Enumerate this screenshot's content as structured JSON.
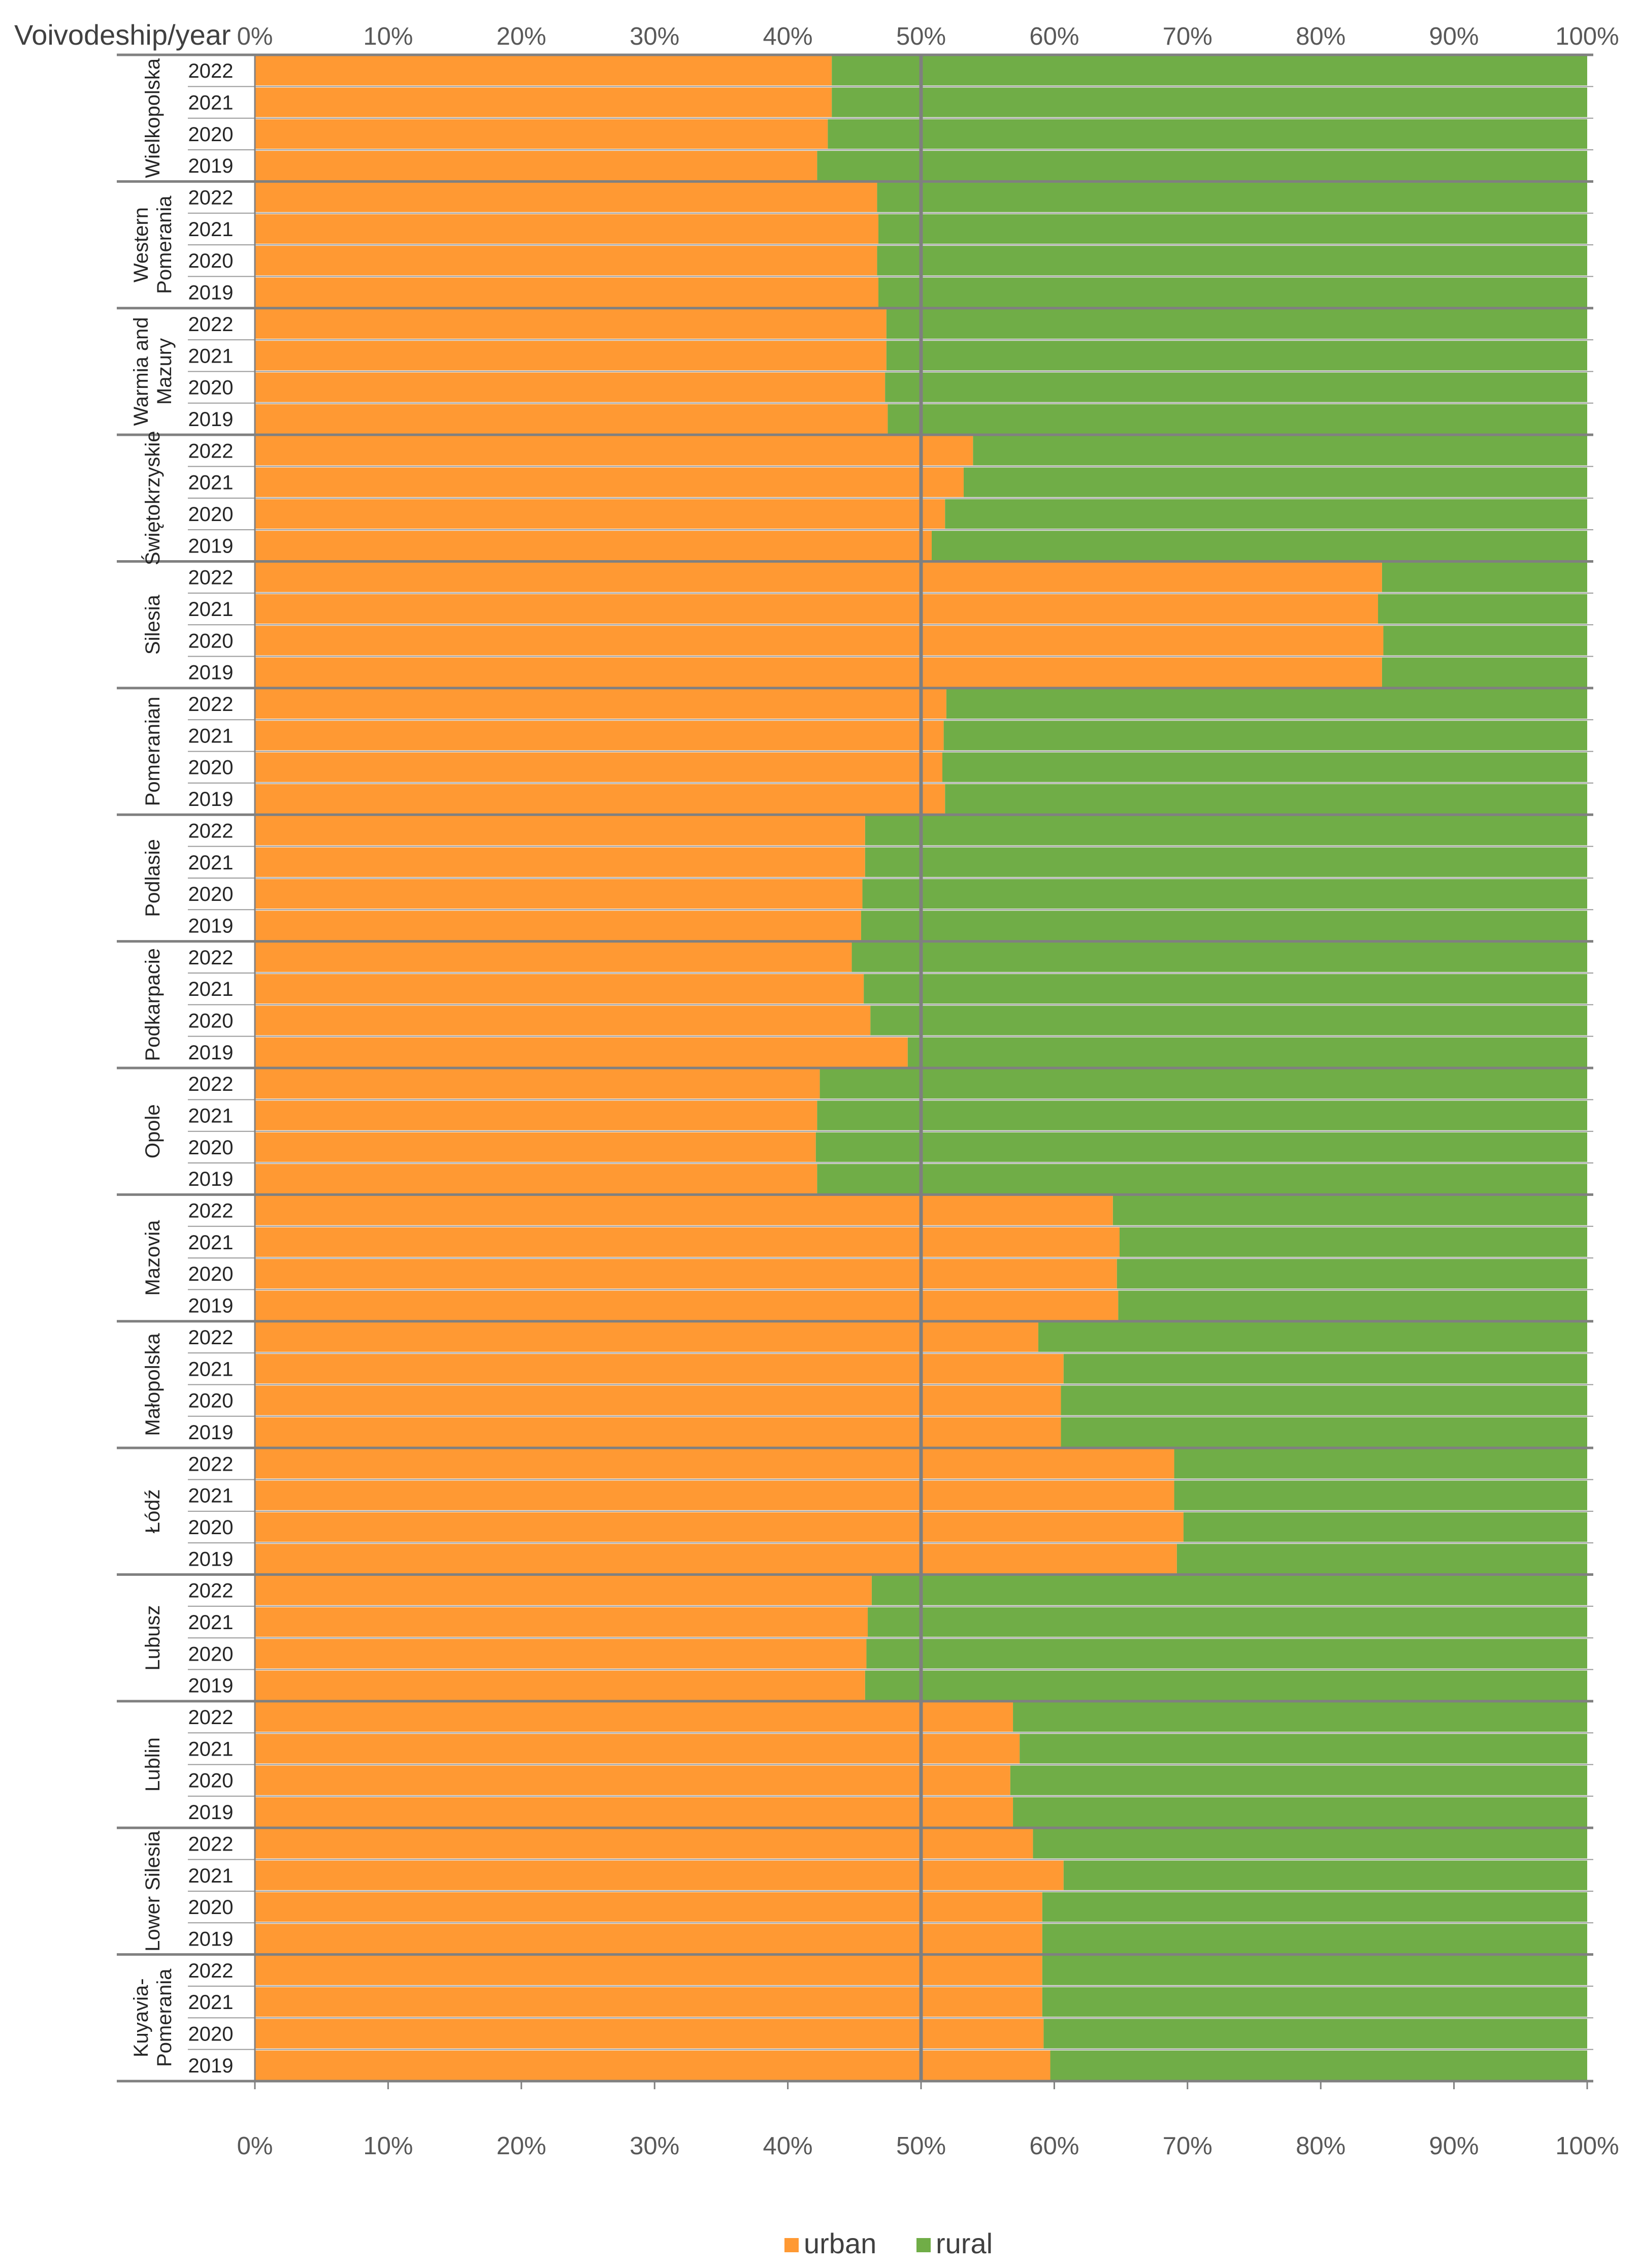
{
  "chart_data": {
    "type": "bar",
    "orientation": "horizontal",
    "stacked": "percent",
    "corner_label": "Voivodeship/year",
    "x_ticks": [
      "0%",
      "10%",
      "20%",
      "30%",
      "40%",
      "50%",
      "60%",
      "70%",
      "80%",
      "90%",
      "100%"
    ],
    "xlim": [
      0,
      100
    ],
    "reference_line": 50,
    "legend": {
      "position": "bottom",
      "entries": [
        "urban",
        "rural"
      ]
    },
    "colors": {
      "urban": "#FF9933",
      "rural": "#70AD47",
      "grid": "#808080",
      "reference": "#7F7F7F"
    },
    "series_names": [
      "urban",
      "rural"
    ],
    "groups": [
      {
        "name": "Wielkopolska",
        "label_lines": [
          "Wielkopolska"
        ],
        "years": [
          "2022",
          "2021",
          "2020",
          "2019"
        ],
        "urban": [
          43.3,
          43.3,
          43.0,
          42.2
        ]
      },
      {
        "name": "Western Pomerania",
        "label_lines": [
          "Western",
          "Pomerania"
        ],
        "years": [
          "2022",
          "2021",
          "2020",
          "2019"
        ],
        "urban": [
          46.7,
          46.8,
          46.7,
          46.8
        ]
      },
      {
        "name": "Warmia and Mazury",
        "label_lines": [
          "Warmia and",
          "Mazury"
        ],
        "years": [
          "2022",
          "2021",
          "2020",
          "2019"
        ],
        "urban": [
          47.4,
          47.4,
          47.3,
          47.5
        ]
      },
      {
        "name": "Świętokrzyskie",
        "label_lines": [
          "Świętokrzyskie"
        ],
        "years": [
          "2022",
          "2021",
          "2020",
          "2019"
        ],
        "urban": [
          53.9,
          53.2,
          51.8,
          50.8
        ]
      },
      {
        "name": "Silesia",
        "label_lines": [
          "Silesia"
        ],
        "years": [
          "2022",
          "2021",
          "2020",
          "2019"
        ],
        "urban": [
          84.6,
          84.3,
          84.7,
          84.6
        ]
      },
      {
        "name": "Pomeranian",
        "label_lines": [
          "Pomeranian"
        ],
        "years": [
          "2022",
          "2021",
          "2020",
          "2019"
        ],
        "urban": [
          51.9,
          51.7,
          51.6,
          51.8
        ]
      },
      {
        "name": "Podlasie",
        "label_lines": [
          "Podlasie"
        ],
        "years": [
          "2022",
          "2021",
          "2020",
          "2019"
        ],
        "urban": [
          45.8,
          45.8,
          45.6,
          45.5
        ]
      },
      {
        "name": "Podkarpacie",
        "label_lines": [
          "Podkarpacie"
        ],
        "years": [
          "2022",
          "2021",
          "2020",
          "2019"
        ],
        "urban": [
          44.8,
          45.7,
          46.2,
          49.0
        ]
      },
      {
        "name": "Opole",
        "label_lines": [
          "Opole"
        ],
        "years": [
          "2022",
          "2021",
          "2020",
          "2019"
        ],
        "urban": [
          42.4,
          42.2,
          42.1,
          42.2
        ]
      },
      {
        "name": "Mazovia",
        "label_lines": [
          "Mazovia"
        ],
        "years": [
          "2022",
          "2021",
          "2020",
          "2019"
        ],
        "urban": [
          64.4,
          64.9,
          64.7,
          64.8
        ]
      },
      {
        "name": "Małopolska",
        "label_lines": [
          "Małopolska"
        ],
        "years": [
          "2022",
          "2021",
          "2020",
          "2019"
        ],
        "urban": [
          58.8,
          60.7,
          60.5,
          60.5
        ]
      },
      {
        "name": "Łódź",
        "label_lines": [
          "Łódź"
        ],
        "years": [
          "2022",
          "2021",
          "2020",
          "2019"
        ],
        "urban": [
          69.0,
          69.0,
          69.7,
          69.2
        ]
      },
      {
        "name": "Lubusz",
        "label_lines": [
          "Lubusz"
        ],
        "years": [
          "2022",
          "2021",
          "2020",
          "2019"
        ],
        "urban": [
          46.3,
          46.0,
          45.9,
          45.8
        ]
      },
      {
        "name": "Lublin",
        "label_lines": [
          "Lublin"
        ],
        "years": [
          "2022",
          "2021",
          "2020",
          "2019"
        ],
        "urban": [
          56.9,
          57.4,
          56.7,
          56.9
        ]
      },
      {
        "name": "Lower Silesia",
        "label_lines": [
          "Lower Silesia"
        ],
        "years": [
          "2022",
          "2021",
          "2020",
          "2019"
        ],
        "urban": [
          58.4,
          60.7,
          59.1,
          59.1
        ]
      },
      {
        "name": "Kuyavia-Pomerania",
        "label_lines": [
          "Kuyavia-",
          "Pomerania"
        ],
        "years": [
          "2022",
          "2021",
          "2020",
          "2019"
        ],
        "urban": [
          59.1,
          59.1,
          59.2,
          59.7
        ]
      }
    ]
  }
}
